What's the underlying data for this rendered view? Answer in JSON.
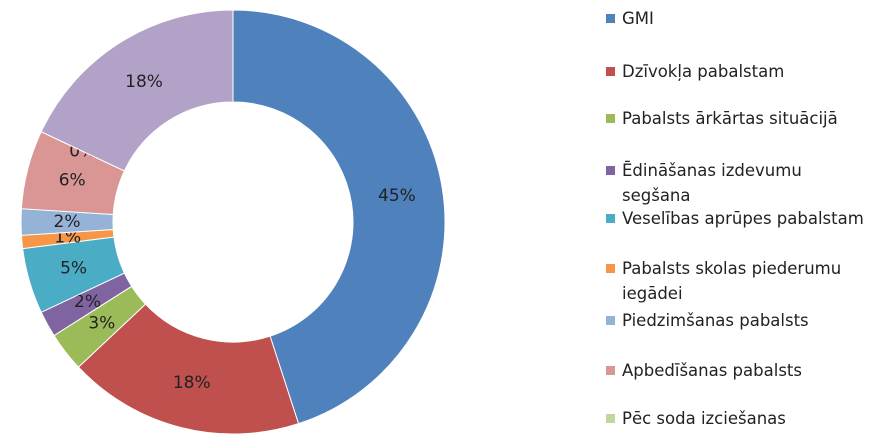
{
  "chart_data": {
    "type": "donut",
    "categories": [
      "GMI",
      "Dzīvokļa pabalstam",
      "Pabalsts ārkārtas situācijā",
      "Ēdināšanas izdevumu segšana",
      "Veselības aprūpes pabalstam",
      "Pabalsts skolas piederumu iegādei",
      "Piedzimšanas pabalsts",
      "Apbedīšanas pabalsts",
      "Pēc soda izciešanas",
      null
    ],
    "values": [
      45,
      18,
      3,
      2,
      5,
      1,
      2,
      6,
      0,
      18
    ],
    "value_labels": [
      "45%",
      "18%",
      "3%",
      "2%",
      "5%",
      "1%",
      "2%",
      "6%",
      "0%",
      "18%"
    ],
    "colors": [
      "#4f81bd",
      "#c0504d",
      "#9bbb59",
      "#8064a2",
      "#4bacc6",
      "#f79646",
      "#95b3d7",
      "#d99694",
      "#c3d69b",
      "#b3a2c7"
    ],
    "legend": "right"
  }
}
